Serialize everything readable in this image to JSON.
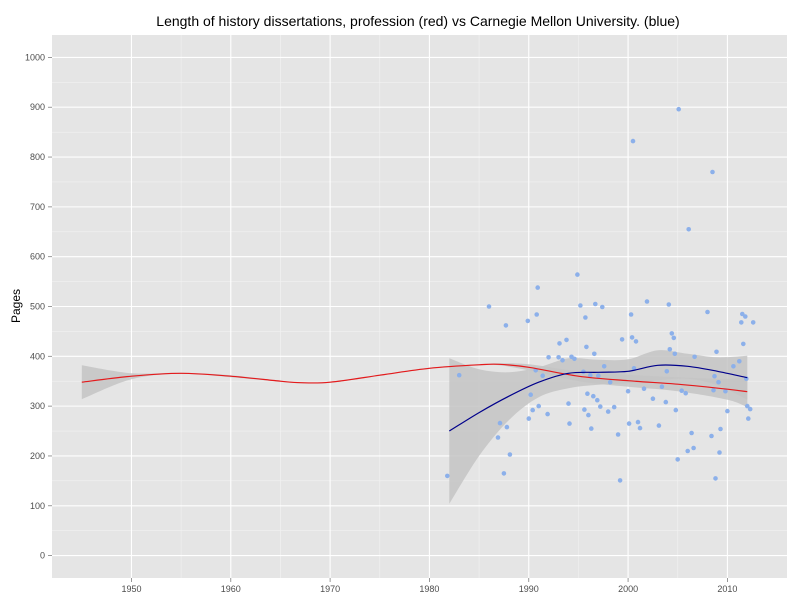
{
  "chart_data": {
    "type": "scatter",
    "title": "Length of history dissertations, profession (red) vs Carnegie Mellon University. (blue)",
    "xlabel": "",
    "ylabel": "Pages",
    "xlim": [
      1942,
      2016
    ],
    "ylim": [
      -45,
      1045
    ],
    "x_ticks": [
      1950,
      1960,
      1970,
      1980,
      1990,
      2000,
      2010
    ],
    "y_ticks": [
      0,
      100,
      200,
      300,
      400,
      500,
      600,
      700,
      800,
      900,
      1000
    ],
    "grid": true,
    "legend": "none",
    "colors": {
      "panel": "#e5e5e5",
      "grid": "#ffffff",
      "points": "#8cb0ea",
      "profession_line": "#e41a1c",
      "cmu_line": "#00008b",
      "ribbon": "#c4c4c4"
    },
    "series": [
      {
        "type": "scatter",
        "points": [
          [
            1981.8,
            160
          ],
          [
            1983,
            362
          ],
          [
            1986,
            500
          ],
          [
            1986.9,
            237
          ],
          [
            1987.1,
            266
          ],
          [
            1987.5,
            165
          ],
          [
            1987.7,
            462
          ],
          [
            1987.8,
            258
          ],
          [
            1988.1,
            203
          ],
          [
            1989.9,
            471
          ],
          [
            1990,
            275
          ],
          [
            1990.2,
            323
          ],
          [
            1990.4,
            292
          ],
          [
            1990.7,
            372
          ],
          [
            1990.8,
            484
          ],
          [
            1990.9,
            538
          ],
          [
            1991,
            300
          ],
          [
            1991.4,
            361
          ],
          [
            1991.9,
            284
          ],
          [
            1992,
            398
          ],
          [
            1993,
            398
          ],
          [
            1993.1,
            426
          ],
          [
            1993.4,
            392
          ],
          [
            1993.8,
            433
          ],
          [
            1994,
            305
          ],
          [
            1994.1,
            265
          ],
          [
            1994.3,
            399
          ],
          [
            1994.6,
            395
          ],
          [
            1994.9,
            564
          ],
          [
            1995.2,
            502
          ],
          [
            1995.5,
            369
          ],
          [
            1995.6,
            293
          ],
          [
            1995.7,
            478
          ],
          [
            1995.8,
            419
          ],
          [
            1995.9,
            325
          ],
          [
            1996,
            282
          ],
          [
            1996.2,
            362
          ],
          [
            1996.3,
            255
          ],
          [
            1996.5,
            320
          ],
          [
            1996.6,
            405
          ],
          [
            1996.7,
            505
          ],
          [
            1996.9,
            312
          ],
          [
            1997,
            361
          ],
          [
            1997.2,
            299
          ],
          [
            1997.4,
            499
          ],
          [
            1997.6,
            380
          ],
          [
            1998,
            289
          ],
          [
            1998.2,
            348
          ],
          [
            1998.6,
            298
          ],
          [
            1999,
            243
          ],
          [
            1999.2,
            151
          ],
          [
            1999.4,
            434
          ],
          [
            2000,
            330
          ],
          [
            2000.1,
            265
          ],
          [
            2000.3,
            484
          ],
          [
            2000.4,
            438
          ],
          [
            2000.5,
            832
          ],
          [
            2000.6,
            376
          ],
          [
            2000.8,
            430
          ],
          [
            2001,
            268
          ],
          [
            2001.2,
            256
          ],
          [
            2001.6,
            335
          ],
          [
            2001.9,
            510
          ],
          [
            2002.5,
            315
          ],
          [
            2003.1,
            261
          ],
          [
            2003.4,
            339
          ],
          [
            2003.8,
            308
          ],
          [
            2003.9,
            370
          ],
          [
            2004.1,
            504
          ],
          [
            2004.2,
            414
          ],
          [
            2004.4,
            446
          ],
          [
            2004.6,
            437
          ],
          [
            2004.7,
            405
          ],
          [
            2004.8,
            292
          ],
          [
            2005,
            193
          ],
          [
            2005.1,
            896
          ],
          [
            2005.4,
            331
          ],
          [
            2005.8,
            326
          ],
          [
            2006,
            210
          ],
          [
            2006.1,
            655
          ],
          [
            2006.4,
            246
          ],
          [
            2006.6,
            216
          ],
          [
            2006.7,
            399
          ],
          [
            2008,
            489
          ],
          [
            2008.4,
            240
          ],
          [
            2008.5,
            770
          ],
          [
            2008.6,
            332
          ],
          [
            2008.7,
            360
          ],
          [
            2008.8,
            155
          ],
          [
            2008.9,
            409
          ],
          [
            2009.1,
            348
          ],
          [
            2009.2,
            207
          ],
          [
            2009.3,
            254
          ],
          [
            2009.8,
            330
          ],
          [
            2010,
            290
          ],
          [
            2010.6,
            380
          ],
          [
            2011.2,
            390
          ],
          [
            2011.4,
            468
          ],
          [
            2011.5,
            485
          ],
          [
            2011.6,
            425
          ],
          [
            2011.8,
            480
          ],
          [
            2011.9,
            355
          ],
          [
            2012,
            300
          ],
          [
            2012.1,
            275
          ],
          [
            2012.3,
            294
          ],
          [
            2012.6,
            468
          ]
        ]
      },
      {
        "type": "smooth",
        "color": "red",
        "x": [
          1945,
          1950,
          1955,
          1960,
          1965,
          1967,
          1970,
          1975,
          1980,
          1985,
          1987,
          1990,
          1995,
          2000,
          2005,
          2010,
          2012
        ],
        "y": [
          348,
          360,
          366,
          360,
          350,
          347,
          348,
          362,
          376,
          383,
          384,
          378,
          360,
          351,
          344,
          334,
          329
        ],
        "ribbon_lower": [
          314,
          354,
          365,
          358,
          349,
          346,
          347,
          361,
          375,
          382,
          382,
          372,
          350,
          339,
          330,
          313,
          298
        ],
        "ribbon_upper": [
          382,
          366,
          367,
          362,
          351,
          348,
          349,
          363,
          377,
          384,
          386,
          384,
          370,
          363,
          358,
          355,
          360
        ]
      },
      {
        "type": "smooth",
        "color": "blue",
        "x": [
          1982,
          1985,
          1988,
          1991,
          1994,
          1997,
          2000,
          2003,
          2006,
          2009,
          2012
        ],
        "y": [
          250,
          287,
          320,
          348,
          366,
          368,
          370,
          382,
          380,
          370,
          357
        ],
        "ribbon_lower": [
          104,
          200,
          272,
          318,
          336,
          343,
          346,
          352,
          355,
          342,
          313
        ],
        "ribbon_upper": [
          396,
          374,
          368,
          378,
          396,
          393,
          394,
          412,
          405,
          398,
          401
        ]
      }
    ]
  }
}
